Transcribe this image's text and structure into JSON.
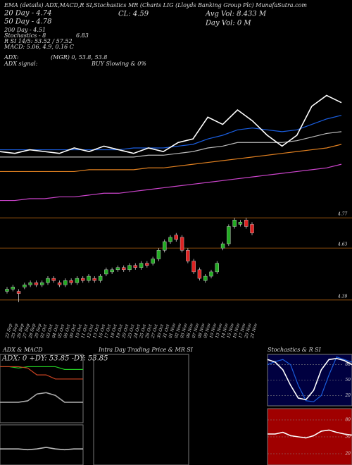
{
  "header": {
    "ema": "EMA (details) ADX,MACD,R SI,Stochastics MR (Charts LIG (Lloyds Banking Group Plc) MunafaSutra.com",
    "d20": "20 Day - 4.74",
    "d50": "50 Day - 4.78",
    "d200": "200 Day - 4.51",
    "stoch": "Stochastics - 8",
    "stoch_val": "6.83",
    "rsi": "R SI 14/5: 53.52 / 57.52",
    "macd": "MACD: 5.06, 4.9, 0.16 C",
    "close": "CL: 4.59",
    "avg_vol": "Avg Vol: 8.433 M",
    "day_vol": "Day Vol: 0 M",
    "adx": "ADX:",
    "adx_vals": "(MGR) 0, 53.8, 53.8",
    "adx_signal": "ADX signal:",
    "signal": "BUY Slowing & 0%"
  },
  "panels": {
    "adx_title": "ADX & MACD",
    "adx_info": "ADX: 0 +DY: 53.85 -DY: 53.85",
    "intra_title": "Intra Day Trading Price & MR SI",
    "stoch_title": "Stochastics & R SI"
  },
  "chart_data": [
    {
      "type": "line",
      "ylim": [
        4.2,
        4.9
      ],
      "series": [
        {
          "color": "#cc44cc",
          "values": [
            4.26,
            4.26,
            4.27,
            4.27,
            4.28,
            4.28,
            4.29,
            4.3,
            4.3,
            4.31,
            4.32,
            4.33,
            4.34,
            4.35,
            4.36,
            4.37,
            4.38,
            4.39,
            4.4,
            4.41,
            4.42,
            4.43,
            4.44,
            4.46
          ]
        },
        {
          "color": "#e08020",
          "values": [
            4.42,
            4.42,
            4.42,
            4.42,
            4.42,
            4.42,
            4.43,
            4.43,
            4.43,
            4.43,
            4.44,
            4.44,
            4.45,
            4.46,
            4.47,
            4.48,
            4.49,
            4.5,
            4.51,
            4.52,
            4.53,
            4.54,
            4.55,
            4.57
          ]
        },
        {
          "color": "#bbbbbb",
          "values": [
            4.5,
            4.5,
            4.5,
            4.5,
            4.5,
            4.5,
            4.5,
            4.5,
            4.5,
            4.5,
            4.51,
            4.51,
            4.52,
            4.53,
            4.55,
            4.56,
            4.58,
            4.58,
            4.58,
            4.58,
            4.59,
            4.61,
            4.63,
            4.64
          ]
        },
        {
          "color": "#1a5ee0",
          "values": [
            4.54,
            4.54,
            4.54,
            4.54,
            4.54,
            4.54,
            4.54,
            4.54,
            4.54,
            4.55,
            4.55,
            4.55,
            4.56,
            4.57,
            4.6,
            4.62,
            4.65,
            4.66,
            4.65,
            4.64,
            4.65,
            4.68,
            4.71,
            4.73
          ]
        },
        {
          "color": "#ffffff",
          "values": [
            4.53,
            4.52,
            4.54,
            4.53,
            4.52,
            4.55,
            4.53,
            4.56,
            4.54,
            4.52,
            4.55,
            4.53,
            4.58,
            4.6,
            4.72,
            4.68,
            4.76,
            4.7,
            4.62,
            4.56,
            4.62,
            4.78,
            4.84,
            4.8
          ]
        }
      ]
    },
    {
      "type": "candlestick",
      "ylim": [
        4.36,
        4.8
      ],
      "yticks": [
        4.77,
        4.63,
        4.39
      ],
      "up_color": "#22aa22",
      "down_color": "#dd2222",
      "categories": [
        "22 Sep",
        "25 Sep",
        "26 Sep",
        "27 Sep",
        "28 Sep",
        "29 Sep",
        "02 Oct",
        "03 Oct",
        "04 Oct",
        "05 Oct",
        "06 Oct",
        "09 Oct",
        "10 Oct",
        "11 Oct",
        "12 Oct",
        "13 Oct",
        "16 Oct",
        "17 Oct",
        "18 Oct",
        "19 Oct",
        "20 Oct",
        "23 Oct",
        "24 Oct",
        "25 Oct",
        "26 Oct",
        "27 Oct",
        "30 Oct",
        "31 Oct",
        "01 Nov",
        "02 Nov",
        "03 Nov",
        "06 Nov",
        "07 Nov",
        "08 Nov",
        "09 Nov",
        "10 Nov",
        "13 Nov",
        "14 Nov",
        "15 Nov",
        "16 Nov",
        "17 Nov",
        "20 Nov",
        "21 Nov"
      ],
      "open": [
        4.43,
        4.44,
        4.43,
        4.45,
        4.46,
        4.47,
        4.46,
        4.47,
        4.49,
        4.47,
        4.46,
        4.48,
        4.47,
        4.49,
        4.48,
        4.49,
        4.48,
        4.51,
        4.52,
        4.53,
        4.54,
        4.53,
        4.55,
        4.54,
        4.56,
        4.56,
        4.58,
        4.62,
        4.66,
        4.69,
        4.68,
        4.62,
        4.57,
        4.53,
        4.48,
        4.5,
        4.52,
        4.63,
        4.65,
        4.73,
        4.74,
        4.76,
        4.74
      ],
      "high": [
        4.45,
        4.46,
        4.44,
        4.47,
        4.48,
        4.48,
        4.48,
        4.5,
        4.5,
        4.48,
        4.49,
        4.49,
        4.5,
        4.5,
        4.51,
        4.5,
        4.51,
        4.54,
        4.54,
        4.55,
        4.55,
        4.56,
        4.56,
        4.57,
        4.57,
        4.59,
        4.63,
        4.67,
        4.69,
        4.7,
        4.69,
        4.63,
        4.58,
        4.54,
        4.51,
        4.53,
        4.57,
        4.66,
        4.74,
        4.77,
        4.76,
        4.77,
        4.75
      ],
      "low": [
        4.42,
        4.43,
        4.38,
        4.44,
        4.45,
        4.45,
        4.45,
        4.46,
        4.47,
        4.45,
        4.45,
        4.46,
        4.46,
        4.47,
        4.47,
        4.47,
        4.47,
        4.5,
        4.51,
        4.52,
        4.52,
        4.52,
        4.53,
        4.53,
        4.54,
        4.55,
        4.57,
        4.61,
        4.65,
        4.66,
        4.61,
        4.56,
        4.51,
        4.48,
        4.47,
        4.49,
        4.51,
        4.62,
        4.64,
        4.72,
        4.73,
        4.72,
        4.69
      ],
      "close": [
        4.44,
        4.45,
        4.42,
        4.46,
        4.47,
        4.46,
        4.47,
        4.49,
        4.48,
        4.46,
        4.48,
        4.47,
        4.49,
        4.48,
        4.5,
        4.48,
        4.5,
        4.53,
        4.53,
        4.54,
        4.53,
        4.55,
        4.54,
        4.56,
        4.55,
        4.58,
        4.62,
        4.66,
        4.68,
        4.67,
        4.62,
        4.57,
        4.52,
        4.49,
        4.5,
        4.52,
        4.56,
        4.65,
        4.73,
        4.76,
        4.75,
        4.73,
        4.7
      ]
    },
    {
      "type": "line",
      "ylim": [
        0,
        100
      ],
      "series": [
        {
          "color": "#22cc22",
          "values": [
            82,
            82,
            80,
            82,
            82,
            82,
            82,
            78,
            78,
            78
          ]
        },
        {
          "color": "#cc4422",
          "values": [
            82,
            82,
            82,
            80,
            70,
            70,
            64,
            64,
            64,
            64
          ]
        },
        {
          "color": "#aaaaaa",
          "values": [
            30,
            30,
            30,
            32,
            42,
            44,
            40,
            30,
            30,
            30
          ]
        }
      ]
    },
    {
      "type": "line",
      "ylim": [
        0,
        100
      ],
      "series": [
        {
          "color": "#bbbbbb",
          "values": [
            40,
            40,
            40,
            38,
            40,
            44,
            40,
            38,
            40,
            40
          ]
        }
      ]
    },
    {
      "type": "line",
      "ylim": [
        0,
        100
      ],
      "yticks": [
        80,
        50,
        20
      ],
      "background": "#000040",
      "series": [
        {
          "color": "#1a5ee0",
          "values": [
            80,
            86,
            90,
            80,
            40,
            10,
            8,
            20,
            60,
            95,
            90,
            85
          ]
        },
        {
          "color": "#ffffff",
          "values": [
            90,
            85,
            70,
            40,
            15,
            12,
            30,
            70,
            90,
            92,
            88,
            80
          ]
        }
      ]
    },
    {
      "type": "line",
      "ylim": [
        0,
        100
      ],
      "yticks": [
        80,
        50,
        20
      ],
      "background": "#a00000",
      "series": [
        {
          "color": "#ffffff",
          "values": [
            55,
            55,
            58,
            52,
            50,
            48,
            52,
            60,
            62,
            58,
            55,
            53
          ]
        }
      ]
    }
  ]
}
